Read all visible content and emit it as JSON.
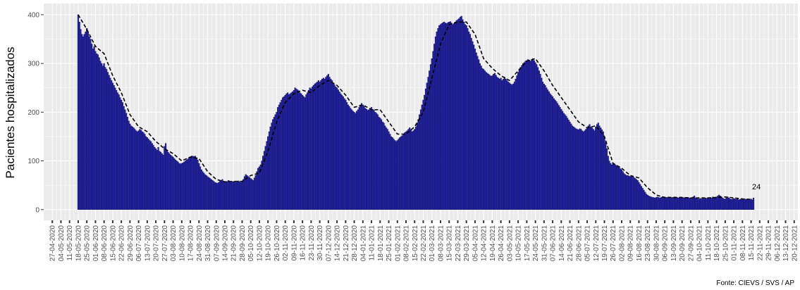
{
  "chart_data": {
    "type": "bar",
    "y_label": "Pacientes hospitalizados",
    "caption": "Fonte: CIEVS / SVS / AP",
    "ylim": [
      -22,
      423
    ],
    "yticks": [
      0,
      100,
      200,
      300,
      400
    ],
    "xlim": [
      "20-04-2020",
      "23-12-2021"
    ],
    "xticks": [
      "27-04-2020",
      "04-05-2020",
      "11-05-2020",
      "18-05-2020",
      "25-05-2020",
      "01-06-2020",
      "08-06-2020",
      "15-06-2020",
      "22-06-2020",
      "29-06-2020",
      "06-07-2020",
      "13-07-2020",
      "20-07-2020",
      "27-07-2020",
      "03-08-2020",
      "10-08-2020",
      "17-08-2020",
      "24-08-2020",
      "31-08-2020",
      "07-09-2020",
      "14-09-2020",
      "21-09-2020",
      "28-09-2020",
      "05-10-2020",
      "12-10-2020",
      "19-10-2020",
      "26-10-2020",
      "02-11-2020",
      "09-11-2020",
      "16-11-2020",
      "23-11-2020",
      "30-11-2020",
      "07-12-2020",
      "14-12-2020",
      "21-12-2020",
      "28-12-2020",
      "04-01-2021",
      "11-01-2021",
      "18-01-2021",
      "25-01-2021",
      "01-02-2021",
      "08-02-2021",
      "15-02-2021",
      "22-02-2021",
      "01-03-2021",
      "08-03-2021",
      "15-03-2021",
      "22-03-2021",
      "29-03-2021",
      "05-04-2021",
      "12-04-2021",
      "19-04-2021",
      "26-04-2021",
      "03-05-2021",
      "10-05-2021",
      "17-05-2021",
      "24-05-2021",
      "31-05-2021",
      "07-06-2021",
      "14-06-2021",
      "21-06-2021",
      "28-06-2021",
      "05-07-2021",
      "12-07-2021",
      "19-07-2021",
      "26-07-2021",
      "02-08-2021",
      "09-08-2021",
      "16-08-2021",
      "23-08-2021",
      "30-08-2021",
      "06-09-2021",
      "13-09-2021",
      "20-09-2021",
      "27-09-2021",
      "04-10-2021",
      "11-10-2021",
      "18-10-2021",
      "25-10-2021",
      "01-11-2021",
      "08-11-2021",
      "15-11-2021",
      "22-11-2021",
      "29-11-2021",
      "06-12-2021",
      "13-12-2021",
      "20-12-2021"
    ],
    "grid": true,
    "bars": {
      "first_day": "18-05-2020",
      "color": "#2626a8",
      "edge": "#0a0a50",
      "values": [
        400,
        385,
        370,
        360,
        355,
        360,
        365,
        372,
        365,
        355,
        350,
        340,
        330,
        335,
        325,
        320,
        318,
        312,
        305,
        300,
        295,
        300,
        292,
        288,
        282,
        276,
        270,
        265,
        260,
        255,
        250,
        245,
        240,
        236,
        230,
        225,
        220,
        212,
        205,
        198,
        190,
        182,
        176,
        172,
        170,
        168,
        165,
        162,
        160,
        162,
        165,
        163,
        160,
        158,
        155,
        150,
        148,
        145,
        142,
        140,
        136,
        132,
        128,
        125,
        122,
        128,
        120,
        118,
        115,
        112,
        130,
        136,
        122,
        118,
        115,
        112,
        110,
        108,
        105,
        102,
        100,
        98,
        95,
        94,
        95,
        96,
        98,
        100,
        102,
        104,
        106,
        108,
        110,
        110,
        109,
        110,
        106,
        102,
        95,
        88,
        82,
        78,
        75,
        72,
        70,
        68,
        66,
        64,
        62,
        60,
        58,
        56,
        55,
        54,
        56,
        58,
        60,
        62,
        58,
        57,
        56,
        58,
        60,
        58,
        56,
        57,
        58,
        57,
        56,
        58,
        59,
        57,
        56,
        58,
        62,
        68,
        72,
        70,
        68,
        66,
        64,
        62,
        60,
        65,
        70,
        78,
        85,
        88,
        92,
        100,
        110,
        120,
        130,
        140,
        150,
        160,
        170,
        178,
        185,
        190,
        195,
        200,
        210,
        215,
        220,
        225,
        230,
        232,
        235,
        238,
        240,
        236,
        238,
        240,
        242,
        245,
        250,
        248,
        246,
        244,
        240,
        238,
        235,
        232,
        230,
        236,
        240,
        245,
        250,
        248,
        252,
        255,
        258,
        260,
        262,
        265,
        262,
        265,
        268,
        270,
        268,
        272,
        275,
        278,
        272,
        268,
        265,
        260,
        256,
        252,
        250,
        246,
        242,
        238,
        235,
        232,
        228,
        225,
        220,
        215,
        212,
        208,
        205,
        202,
        200,
        198,
        202,
        205,
        210,
        215,
        218,
        215,
        212,
        208,
        206,
        204,
        205,
        208,
        210,
        206,
        204,
        200,
        198,
        195,
        190,
        188,
        185,
        180,
        178,
        172,
        168,
        165,
        160,
        155,
        150,
        148,
        145,
        142,
        140,
        142,
        145,
        148,
        150,
        152,
        155,
        158,
        160,
        162,
        165,
        168,
        164,
        160,
        162,
        165,
        170,
        178,
        185,
        195,
        205,
        215,
        225,
        235,
        248,
        260,
        272,
        285,
        298,
        310,
        325,
        340,
        355,
        365,
        372,
        378,
        380,
        382,
        384,
        385,
        383,
        382,
        384,
        385,
        386,
        383,
        380,
        382,
        385,
        388,
        390,
        392,
        395,
        397,
        390,
        385,
        380,
        378,
        372,
        365,
        360,
        352,
        345,
        338,
        330,
        322,
        315,
        308,
        300,
        295,
        290,
        288,
        285,
        282,
        280,
        278,
        276,
        274,
        275,
        278,
        280,
        276,
        272,
        270,
        268,
        270,
        265,
        268,
        272,
        268,
        265,
        262,
        260,
        258,
        256,
        258,
        262,
        268,
        275,
        282,
        288,
        292,
        296,
        300,
        302,
        305,
        306,
        308,
        307,
        305,
        308,
        310,
        306,
        302,
        298,
        292,
        285,
        278,
        270,
        262,
        258,
        255,
        250,
        246,
        242,
        238,
        235,
        232,
        228,
        225,
        222,
        218,
        214,
        210,
        206,
        202,
        198,
        195,
        192,
        188,
        184,
        180,
        176,
        172,
        170,
        168,
        166,
        165,
        164,
        166,
        165,
        162,
        160,
        162,
        165,
        168,
        172,
        175,
        170,
        168,
        165,
        162,
        170,
        175,
        178,
        172,
        168,
        164,
        160,
        150,
        138,
        125,
        110,
        100,
        95,
        92,
        95,
        94,
        92,
        90,
        88,
        86,
        84,
        82,
        78,
        74,
        72,
        70,
        70,
        69,
        68,
        68,
        67,
        66,
        64,
        62,
        60,
        56,
        52,
        48,
        44,
        40,
        36,
        32,
        30,
        28,
        27,
        26,
        25,
        25,
        24,
        25,
        26,
        25,
        24,
        25,
        26,
        25,
        26,
        25,
        25,
        26,
        25,
        24,
        25,
        25,
        26,
        25,
        25,
        24,
        25,
        24,
        24,
        25,
        24,
        23,
        24,
        25,
        24,
        23,
        24,
        26,
        28,
        24,
        23,
        22,
        22,
        23,
        22,
        23,
        22,
        24,
        23,
        24,
        23,
        25,
        24,
        26,
        25,
        24,
        26,
        28,
        30,
        28,
        26,
        24,
        22,
        22,
        24,
        26,
        24,
        22,
        21,
        22,
        23,
        22,
        21,
        22,
        20,
        21,
        22,
        21,
        20,
        22,
        21,
        20,
        21,
        20,
        22,
        20,
        24
      ],
      "last_label": 24
    },
    "line": {
      "color": "#000000",
      "dash": true,
      "x": [
        "18-05-2020",
        "25-05-2020",
        "01-06-2020",
        "08-06-2020",
        "15-06-2020",
        "22-06-2020",
        "29-06-2020",
        "06-07-2020",
        "13-07-2020",
        "20-07-2020",
        "27-07-2020",
        "03-08-2020",
        "10-08-2020",
        "17-08-2020",
        "24-08-2020",
        "31-08-2020",
        "07-09-2020",
        "14-09-2020",
        "21-09-2020",
        "28-09-2020",
        "05-10-2020",
        "12-10-2020",
        "19-10-2020",
        "26-10-2020",
        "02-11-2020",
        "09-11-2020",
        "16-11-2020",
        "23-11-2020",
        "30-11-2020",
        "07-12-2020",
        "14-12-2020",
        "21-12-2020",
        "28-12-2020",
        "04-01-2021",
        "11-01-2021",
        "18-01-2021",
        "25-01-2021",
        "01-02-2021",
        "08-02-2021",
        "15-02-2021",
        "22-02-2021",
        "01-03-2021",
        "08-03-2021",
        "15-03-2021",
        "22-03-2021",
        "29-03-2021",
        "05-04-2021",
        "12-04-2021",
        "19-04-2021",
        "26-04-2021",
        "03-05-2021",
        "10-05-2021",
        "17-05-2021",
        "24-05-2021",
        "31-05-2021",
        "07-06-2021",
        "14-06-2021",
        "21-06-2021",
        "28-06-2021",
        "05-07-2021",
        "12-07-2021",
        "19-07-2021",
        "26-07-2021",
        "02-08-2021",
        "09-08-2021",
        "16-08-2021",
        "23-08-2021",
        "30-08-2021",
        "06-09-2021",
        "13-09-2021",
        "20-09-2021",
        "27-09-2021",
        "04-10-2021",
        "11-10-2021",
        "18-10-2021",
        "25-10-2021",
        "01-11-2021",
        "08-11-2021",
        "15-11-2021"
      ],
      "values": [
        400,
        370,
        335,
        320,
        275,
        240,
        195,
        170,
        160,
        140,
        125,
        115,
        100,
        108,
        105,
        78,
        62,
        57,
        58,
        58,
        70,
        75,
        120,
        180,
        220,
        238,
        245,
        240,
        255,
        265,
        255,
        235,
        210,
        215,
        205,
        205,
        180,
        155,
        155,
        170,
        200,
        270,
        340,
        380,
        385,
        385,
        360,
        310,
        290,
        275,
        265,
        285,
        305,
        310,
        285,
        255,
        230,
        205,
        180,
        168,
        172,
        150,
        95,
        85,
        70,
        65,
        45,
        30,
        25,
        25,
        25,
        24,
        24,
        24,
        25,
        26,
        24,
        22,
        21
      ]
    }
  }
}
